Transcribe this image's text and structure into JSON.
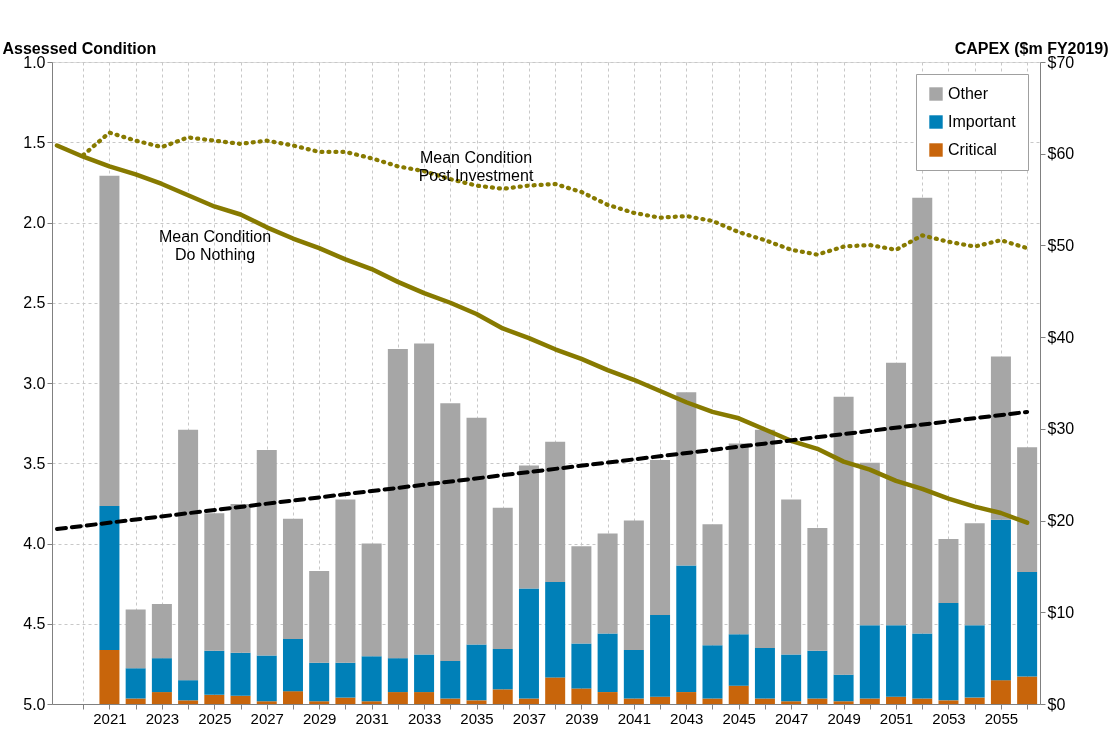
{
  "chart_data": {
    "type": "bar",
    "ylabel": "Assessed Condition",
    "y2label": "CAPEX ($m FY2019)",
    "x": [
      2019,
      2020,
      2021,
      2022,
      2023,
      2024,
      2025,
      2026,
      2027,
      2028,
      2029,
      2030,
      2031,
      2032,
      2033,
      2034,
      2035,
      2036,
      2037,
      2038,
      2039,
      2040,
      2041,
      2042,
      2043,
      2044,
      2045,
      2046,
      2047,
      2048,
      2049,
      2050,
      2051,
      2052,
      2053,
      2054,
      2055,
      2056
    ],
    "stacked": true,
    "series": [
      {
        "name": "Critical",
        "color": "#c8650b",
        "axis": "y2",
        "values": [
          null,
          null,
          5.9,
          0.6,
          1.3,
          0.4,
          1.0,
          0.9,
          0.3,
          1.4,
          0.3,
          0.7,
          0.3,
          1.3,
          1.3,
          0.6,
          0.4,
          1.6,
          0.6,
          2.9,
          1.7,
          1.3,
          0.6,
          0.8,
          1.3,
          0.6,
          2.0,
          0.6,
          0.3,
          0.6,
          0.3,
          0.6,
          0.8,
          0.6,
          0.4,
          0.7,
          2.6,
          3.0
        ]
      },
      {
        "name": "Important",
        "color": "#0080b8",
        "axis": "y2",
        "values": [
          null,
          null,
          15.7,
          3.3,
          3.7,
          2.2,
          4.8,
          4.7,
          5.0,
          5.7,
          4.2,
          3.8,
          4.9,
          3.7,
          4.1,
          4.1,
          6.1,
          4.4,
          12.0,
          10.4,
          4.9,
          6.4,
          5.3,
          8.9,
          13.8,
          5.8,
          5.6,
          5.5,
          5.1,
          5.2,
          2.9,
          8.0,
          7.8,
          7.1,
          10.6,
          7.9,
          17.5,
          11.4
        ]
      },
      {
        "name": "Other",
        "color": "#a6a6a6",
        "axis": "y2",
        "values": [
          null,
          null,
          36.0,
          6.4,
          5.9,
          27.3,
          15.0,
          16.2,
          22.4,
          13.1,
          10.0,
          17.8,
          12.3,
          33.7,
          33.9,
          28.1,
          24.7,
          15.4,
          13.4,
          15.3,
          10.6,
          10.9,
          14.1,
          16.9,
          18.9,
          13.2,
          20.8,
          23.8,
          16.9,
          13.4,
          30.3,
          17.7,
          28.6,
          47.5,
          7.0,
          11.1,
          17.8,
          13.6
        ]
      },
      {
        "type": "line",
        "color": "#877a00",
        "line_style": "solid",
        "values": [
          1.52,
          1.59,
          1.65,
          1.7,
          1.76,
          1.83,
          1.9,
          1.95,
          2.03,
          2.1,
          2.16,
          2.23,
          2.29,
          2.37,
          2.44,
          2.5,
          2.57,
          2.66,
          2.72,
          2.79,
          2.85,
          2.92,
          2.98,
          3.05,
          3.12,
          3.18,
          3.22,
          3.29,
          3.36,
          3.41,
          3.49,
          3.54,
          3.61,
          3.66,
          3.72,
          3.77,
          3.81,
          3.87
        ]
      },
      {
        "type": "line",
        "color": "#877a00",
        "line_style": "dotted",
        "values": [
          null,
          1.58,
          1.44,
          1.49,
          1.53,
          1.47,
          1.49,
          1.51,
          1.49,
          1.52,
          1.56,
          1.56,
          1.6,
          1.65,
          1.68,
          1.73,
          1.77,
          1.79,
          1.77,
          1.76,
          1.81,
          1.89,
          1.94,
          1.97,
          1.96,
          1.99,
          2.06,
          2.11,
          2.17,
          2.2,
          2.15,
          2.14,
          2.17,
          2.08,
          2.12,
          2.15,
          2.11,
          2.16
        ]
      },
      {
        "type": "line",
        "color": "#000000",
        "line_style": "dashed",
        "x": [
          2019,
          2056
        ],
        "values": [
          3.91,
          3.18
        ]
      }
    ],
    "annotations": [
      "Mean Condition\nDo Nothing",
      "Mean Condition\nPost Investment"
    ],
    "xlim": [
      2019,
      2056.3
    ],
    "xticks": [
      {
        "value": 2020,
        "label": null
      },
      2021,
      {
        "value": 2022,
        "label": null
      },
      2023,
      {
        "value": 2024,
        "label": null
      },
      2025,
      {
        "value": 2026,
        "label": null
      },
      2027,
      {
        "value": 2028,
        "label": null
      },
      2029,
      {
        "value": 2030,
        "label": null
      },
      2031,
      {
        "value": 2032,
        "label": null
      },
      2033,
      {
        "value": 2034,
        "label": null
      },
      2035,
      {
        "value": 2036,
        "label": null
      },
      2037,
      {
        "value": 2038,
        "label": null
      },
      2039,
      {
        "value": 2040,
        "label": null
      },
      2041,
      {
        "value": 2042,
        "label": null
      },
      2043,
      {
        "value": 2044,
        "label": null
      },
      2045,
      {
        "value": 2046,
        "label": null
      },
      2047,
      {
        "value": 2048,
        "label": null
      },
      2049,
      {
        "value": 2050,
        "label": null
      },
      2051,
      {
        "value": 2052,
        "label": null
      },
      2053,
      {
        "value": 2054,
        "label": null
      },
      2055,
      {
        "value": 2056,
        "label": null
      }
    ],
    "ylim": [
      5.0,
      1.0
    ],
    "yticks": [
      {
        "value": 1,
        "label": "1.0"
      },
      {
        "value": 1.5,
        "label": "1.5"
      },
      {
        "value": 2,
        "label": "2.0"
      },
      {
        "value": 2.5,
        "label": "2.5"
      },
      {
        "value": 3,
        "label": "3.0"
      },
      {
        "value": 3.5,
        "label": "3.5"
      },
      {
        "value": 4,
        "label": "4.0"
      },
      {
        "value": 4.5,
        "label": "4.5"
      },
      {
        "value": 5,
        "label": "5.0"
      }
    ],
    "y2lim": [
      0,
      70
    ],
    "y2ticks": [
      {
        "value": 0,
        "label": "$0"
      },
      {
        "value": 10,
        "label": "$10"
      },
      {
        "value": 20,
        "label": "$20"
      },
      {
        "value": 30,
        "label": "$30"
      },
      {
        "value": 40,
        "label": "$40"
      },
      {
        "value": 50,
        "label": "$50"
      },
      {
        "value": 60,
        "label": "$60"
      },
      {
        "value": 70,
        "label": "$70"
      }
    ],
    "grid": true,
    "legend": "top right",
    "marker": "none"
  }
}
